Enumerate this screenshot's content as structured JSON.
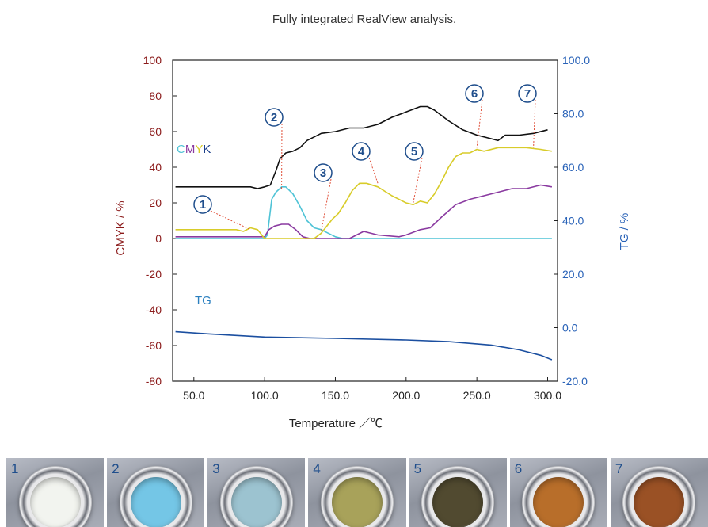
{
  "chart_data": {
    "type": "line",
    "title": "Fully integrated RealView analysis.",
    "xlabel": "Temperature ／℃",
    "ylabel_left": "CMYK / %",
    "ylabel_right": "TG / %",
    "xlim": [
      35,
      307
    ],
    "ylim_left": [
      -80,
      100
    ],
    "ylim_right": [
      -20,
      100
    ],
    "x_ticks": [
      "50.0",
      "100.0",
      "150.0",
      "200.0",
      "250.0",
      "300.0"
    ],
    "x_tick_values": [
      50,
      100,
      150,
      200,
      250,
      300
    ],
    "y_left_ticks": [
      "100",
      "80",
      "60",
      "40",
      "20",
      "0",
      "-20",
      "-40",
      "-60",
      "-80"
    ],
    "y_left_tick_values": [
      100,
      80,
      60,
      40,
      20,
      0,
      -20,
      -40,
      -60,
      -80
    ],
    "y_right_ticks": [
      "100.0",
      "80.0",
      "60.0",
      "40.0",
      "20.0",
      "0.0",
      "-20.0"
    ],
    "y_right_tick_values": [
      100,
      80,
      60,
      40,
      20,
      0,
      -20
    ],
    "legend_cmyk": [
      {
        "letter": "C",
        "color": "#4fc3d6"
      },
      {
        "letter": "M",
        "color": "#8a3aa0"
      },
      {
        "letter": "Y",
        "color": "#d8cc2a"
      },
      {
        "letter": "K",
        "color": "#1b3f8a"
      }
    ],
    "legend_tg": {
      "label": "TG",
      "color": "#2a7fbf"
    },
    "series": [
      {
        "key": "K",
        "color": "#111111",
        "axis": "left",
        "x": [
          37,
          90,
          95,
          100,
          104,
          108,
          111,
          115,
          120,
          125,
          130,
          135,
          140,
          150,
          160,
          170,
          180,
          190,
          200,
          210,
          215,
          220,
          230,
          240,
          250,
          260,
          265,
          270,
          280,
          290,
          300
        ],
        "y": [
          29,
          29,
          28,
          29,
          30,
          38,
          45,
          48,
          49,
          51,
          55,
          57,
          59,
          60,
          62,
          62,
          64,
          68,
          71,
          74,
          74,
          72,
          66,
          61,
          58,
          56,
          55,
          58,
          58,
          59,
          61
        ]
      },
      {
        "key": "C",
        "color": "#4fc3d6",
        "axis": "left",
        "x": [
          37,
          95,
          100,
          102,
          105,
          108,
          112,
          115,
          120,
          125,
          130,
          135,
          140,
          145,
          150,
          155,
          200,
          303
        ],
        "y": [
          0,
          0,
          0,
          2,
          22,
          26,
          29,
          29,
          25,
          18,
          10,
          6,
          5,
          3,
          1,
          0,
          0,
          0
        ]
      },
      {
        "key": "M",
        "color": "#8a3aa0",
        "axis": "left",
        "x": [
          37,
          95,
          100,
          103,
          107,
          112,
          117,
          122,
          127,
          132,
          140,
          150,
          160,
          165,
          170,
          180,
          195,
          200,
          210,
          217,
          225,
          235,
          245,
          255,
          265,
          275,
          285,
          295,
          303
        ],
        "y": [
          1,
          1,
          1,
          5,
          7,
          8,
          8,
          5,
          1,
          0,
          0,
          0,
          0,
          2,
          4,
          2,
          1,
          2,
          5,
          6,
          12,
          19,
          22,
          24,
          26,
          28,
          28,
          30,
          29
        ]
      },
      {
        "key": "Y",
        "color": "#d8cc2a",
        "axis": "left",
        "x": [
          37,
          80,
          85,
          90,
          95,
          100,
          105,
          135,
          140,
          145,
          148,
          152,
          157,
          162,
          167,
          172,
          180,
          190,
          200,
          205,
          210,
          215,
          220,
          225,
          230,
          235,
          240,
          245,
          250,
          255,
          265,
          275,
          285,
          295,
          303
        ],
        "y": [
          5,
          5,
          4,
          6,
          5,
          0,
          0,
          0,
          3,
          8,
          11,
          14,
          20,
          27,
          31,
          31,
          29,
          24,
          20,
          19,
          21,
          20,
          25,
          32,
          40,
          46,
          48,
          48,
          50,
          49,
          51,
          51,
          51,
          50,
          49
        ]
      },
      {
        "key": "TG",
        "color": "#1b4fa0",
        "axis": "right",
        "x": [
          37,
          60,
          100,
          150,
          200,
          230,
          260,
          280,
          295,
          303
        ],
        "y": [
          -1.5,
          -2.3,
          -3.5,
          -4.0,
          -4.6,
          -5.2,
          -6.5,
          -8.3,
          -10.3,
          -12.0
        ]
      }
    ],
    "annotations": [
      {
        "label": "①",
        "x": 90,
        "y": 5
      },
      {
        "label": "②",
        "x": 112,
        "y": 28
      },
      {
        "label": "③",
        "x": 140,
        "y": 4
      },
      {
        "label": "④",
        "x": 180,
        "y": 31
      },
      {
        "label": "⑤",
        "x": 205,
        "y": 20
      },
      {
        "label": "⑥",
        "x": 250,
        "y": 51
      },
      {
        "label": "⑦",
        "x": 290,
        "y": 51
      }
    ]
  },
  "photos": [
    {
      "label": "1",
      "color": "#f2f4ef"
    },
    {
      "label": "2",
      "color": "#74c6e6"
    },
    {
      "label": "3",
      "color": "#9cc3d0"
    },
    {
      "label": "4",
      "color": "#a8a25a"
    },
    {
      "label": "5",
      "color": "#514a30"
    },
    {
      "label": "6",
      "color": "#b86e2a"
    },
    {
      "label": "7",
      "color": "#9a5125"
    }
  ]
}
